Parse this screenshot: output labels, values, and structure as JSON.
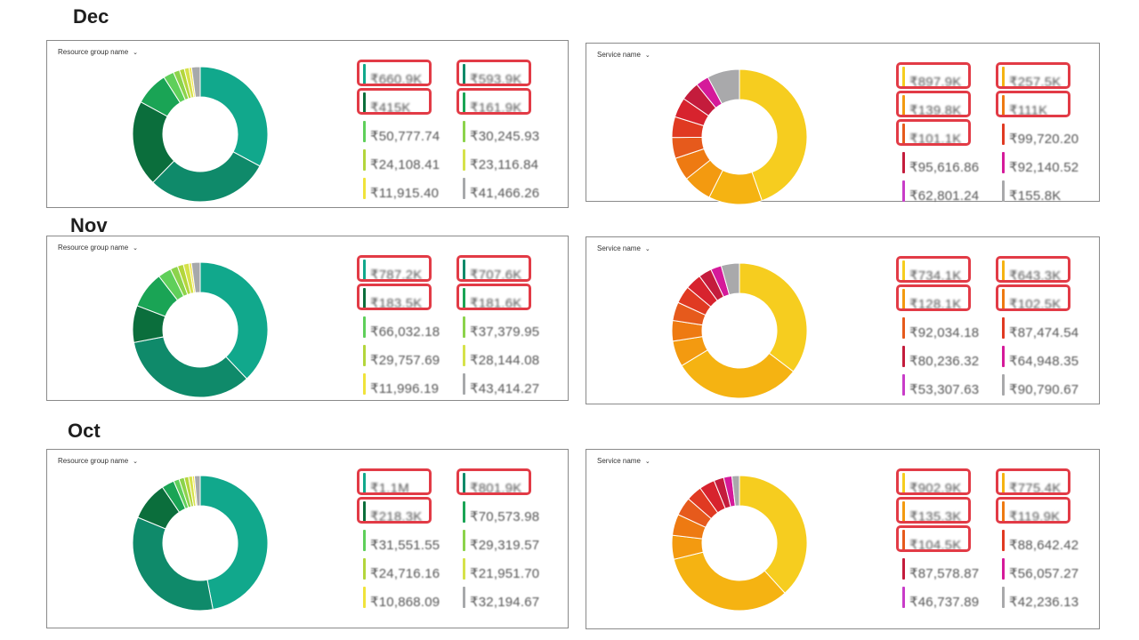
{
  "months": [
    {
      "label": "Dec",
      "left": {
        "dropdown_label": "Resource group name",
        "chart_data": {
          "type": "pie",
          "values": [
            660.9,
            593.9,
            415,
            161.9,
            50.78,
            30.25,
            24.11,
            23.12,
            11.92,
            41.47
          ],
          "colors": [
            "#11a88c",
            "#0f8a6a",
            "#0b6e3c",
            "#1aa455",
            "#5fcf5a",
            "#8cd34b",
            "#b4d63c",
            "#d6e24a",
            "#f0e33b",
            "#a7a9ab"
          ]
        },
        "legend": [
          {
            "name": "",
            "value": "₹660.9K",
            "color": "#11a88c",
            "highlighted": true
          },
          {
            "name": "",
            "value": "₹593.9K",
            "color": "#0f8a6a",
            "highlighted": true
          },
          {
            "name": "",
            "value": "₹415K",
            "color": "#0b6e3c",
            "highlighted": true
          },
          {
            "name": "",
            "value": "₹161.9K",
            "color": "#1aa455",
            "highlighted": true
          },
          {
            "name": "",
            "value": "₹50,777.74",
            "color": "#5fcf5a",
            "highlighted": false
          },
          {
            "name": "",
            "value": "₹30,245.93",
            "color": "#8cd34b",
            "highlighted": false
          },
          {
            "name": "",
            "value": "₹24,108.41",
            "color": "#b4d63c",
            "highlighted": false
          },
          {
            "name": "",
            "value": "₹23,116.84",
            "color": "#d6e24a",
            "highlighted": false
          },
          {
            "name": "",
            "value": "₹11,915.40",
            "color": "#f0e33b",
            "highlighted": false
          },
          {
            "name": "",
            "value": "₹41,466.26",
            "color": "#a7a9ab",
            "highlighted": false
          }
        ]
      },
      "right": {
        "dropdown_label": "Service name",
        "chart_data": {
          "type": "pie",
          "values": [
            897.9,
            257.5,
            139.8,
            111,
            101.1,
            99.72,
            95.62,
            92.14,
            62.8,
            155.8
          ],
          "colors": [
            "#f6cd1f",
            "#f5b312",
            "#f39a10",
            "#ee7a12",
            "#e65a1c",
            "#e03a22",
            "#d7232e",
            "#c41c3c",
            "#d51a9a",
            "#a9a9ab"
          ]
        },
        "legend": [
          {
            "name": "",
            "value": "₹897.9K",
            "color": "#f6cd1f",
            "highlighted": true
          },
          {
            "name": "",
            "value": "₹257.5K",
            "color": "#f5b312",
            "highlighted": true
          },
          {
            "name": "",
            "value": "₹139.8K",
            "color": "#f39a10",
            "highlighted": true
          },
          {
            "name": "",
            "value": "₹111K",
            "color": "#ee7a12",
            "highlighted": true
          },
          {
            "name": "",
            "value": "₹101.1K",
            "color": "#e65a1c",
            "highlighted": true
          },
          {
            "name": "",
            "value": "₹99,720.20",
            "color": "#e03a22",
            "highlighted": false
          },
          {
            "name": "",
            "value": "₹95,616.86",
            "color": "#c41c3c",
            "highlighted": false
          },
          {
            "name": "",
            "value": "₹92,140.52",
            "color": "#d51a9a",
            "highlighted": false
          },
          {
            "name": "",
            "value": "₹62,801.24",
            "color": "#c83cc8",
            "highlighted": false
          },
          {
            "name": "",
            "value": "₹155.8K",
            "color": "#a9a9ab",
            "highlighted": false
          }
        ]
      }
    },
    {
      "label": "Nov",
      "left": {
        "dropdown_label": "Resource group name",
        "chart_data": {
          "type": "pie",
          "values": [
            787.2,
            707.6,
            183.5,
            181.6,
            66.03,
            37.38,
            29.76,
            28.14,
            12.0,
            43.41
          ],
          "colors": [
            "#11a88c",
            "#0f8a6a",
            "#0b6e3c",
            "#1aa455",
            "#5fcf5a",
            "#8cd34b",
            "#b4d63c",
            "#d6e24a",
            "#f0e33b",
            "#a7a9ab"
          ]
        },
        "legend": [
          {
            "name": "",
            "value": "₹787.2K",
            "color": "#11a88c",
            "highlighted": true
          },
          {
            "name": "",
            "value": "₹707.6K",
            "color": "#0f8a6a",
            "highlighted": true
          },
          {
            "name": "",
            "value": "₹183.5K",
            "color": "#0b6e3c",
            "highlighted": true
          },
          {
            "name": "",
            "value": "₹181.6K",
            "color": "#1aa455",
            "highlighted": true
          },
          {
            "name": "",
            "value": "₹66,032.18",
            "color": "#5fcf5a",
            "highlighted": false
          },
          {
            "name": "",
            "value": "₹37,379.95",
            "color": "#8cd34b",
            "highlighted": false
          },
          {
            "name": "",
            "value": "₹29,757.69",
            "color": "#b4d63c",
            "highlighted": false
          },
          {
            "name": "",
            "value": "₹28,144.08",
            "color": "#d6e24a",
            "highlighted": false
          },
          {
            "name": "",
            "value": "₹11,996.19",
            "color": "#f0e33b",
            "highlighted": false
          },
          {
            "name": "",
            "value": "₹43,414.27",
            "color": "#a7a9ab",
            "highlighted": false
          }
        ]
      },
      "right": {
        "dropdown_label": "Service name",
        "chart_data": {
          "type": "pie",
          "values": [
            734.1,
            643.3,
            128.1,
            102.5,
            92.03,
            87.47,
            80.24,
            64.95,
            53.31,
            90.79
          ],
          "colors": [
            "#f6cd1f",
            "#f5b312",
            "#f39a10",
            "#ee7a12",
            "#e65a1c",
            "#e03a22",
            "#d7232e",
            "#c41c3c",
            "#d51a9a",
            "#a9a9ab"
          ]
        },
        "legend": [
          {
            "name": "",
            "value": "₹734.1K",
            "color": "#f6cd1f",
            "highlighted": true
          },
          {
            "name": "",
            "value": "₹643.3K",
            "color": "#f5b312",
            "highlighted": true
          },
          {
            "name": "",
            "value": "₹128.1K",
            "color": "#f39a10",
            "highlighted": true
          },
          {
            "name": "",
            "value": "₹102.5K",
            "color": "#ee7a12",
            "highlighted": true
          },
          {
            "name": "",
            "value": "₹92,034.18",
            "color": "#e65a1c",
            "highlighted": false
          },
          {
            "name": "",
            "value": "₹87,474.54",
            "color": "#e03a22",
            "highlighted": false
          },
          {
            "name": "",
            "value": "₹80,236.32",
            "color": "#c41c3c",
            "highlighted": false
          },
          {
            "name": "",
            "value": "₹64,948.35",
            "color": "#d51a9a",
            "highlighted": false
          },
          {
            "name": "",
            "value": "₹53,307.63",
            "color": "#c83cc8",
            "highlighted": false
          },
          {
            "name": "",
            "value": "₹90,790.67",
            "color": "#a9a9ab",
            "highlighted": false
          }
        ]
      }
    },
    {
      "label": "Oct",
      "left": {
        "dropdown_label": "Resource group name",
        "chart_data": {
          "type": "pie",
          "values": [
            1100,
            801.9,
            218.3,
            70.57,
            31.55,
            29.32,
            24.72,
            21.95,
            10.87,
            32.19
          ],
          "colors": [
            "#11a88c",
            "#0f8a6a",
            "#0b6e3c",
            "#1aa455",
            "#5fcf5a",
            "#8cd34b",
            "#b4d63c",
            "#d6e24a",
            "#f0e33b",
            "#a7a9ab"
          ]
        },
        "legend": [
          {
            "name": "",
            "value": "₹1.1M",
            "color": "#11a88c",
            "highlighted": true
          },
          {
            "name": "",
            "value": "₹801.9K",
            "color": "#0f8a6a",
            "highlighted": true
          },
          {
            "name": "",
            "value": "₹218.3K",
            "color": "#0b6e3c",
            "highlighted": true
          },
          {
            "name": "",
            "value": "₹70,573.98",
            "color": "#1aa455",
            "highlighted": false
          },
          {
            "name": "",
            "value": "₹31,551.55",
            "color": "#5fcf5a",
            "highlighted": false
          },
          {
            "name": "",
            "value": "₹29,319.57",
            "color": "#8cd34b",
            "highlighted": false
          },
          {
            "name": "",
            "value": "₹24,716.16",
            "color": "#b4d63c",
            "highlighted": false
          },
          {
            "name": "",
            "value": "₹21,951.70",
            "color": "#d6e24a",
            "highlighted": false
          },
          {
            "name": "",
            "value": "₹10,868.09",
            "color": "#f0e33b",
            "highlighted": false
          },
          {
            "name": "",
            "value": "₹32,194.67",
            "color": "#a7a9ab",
            "highlighted": false
          }
        ]
      },
      "right": {
        "dropdown_label": "Service name",
        "chart_data": {
          "type": "pie",
          "values": [
            902.9,
            775.4,
            135.3,
            119.9,
            104.5,
            88.64,
            87.58,
            56.06,
            46.74,
            42.24
          ],
          "colors": [
            "#f6cd1f",
            "#f5b312",
            "#f39a10",
            "#ee7a12",
            "#e65a1c",
            "#e03a22",
            "#d7232e",
            "#c41c3c",
            "#d51a9a",
            "#a9a9ab"
          ]
        },
        "legend": [
          {
            "name": "",
            "value": "₹902.9K",
            "color": "#f6cd1f",
            "highlighted": true
          },
          {
            "name": "",
            "value": "₹775.4K",
            "color": "#f5b312",
            "highlighted": true
          },
          {
            "name": "",
            "value": "₹135.3K",
            "color": "#f39a10",
            "highlighted": true
          },
          {
            "name": "",
            "value": "₹119.9K",
            "color": "#ee7a12",
            "highlighted": true
          },
          {
            "name": "",
            "value": "₹104.5K",
            "color": "#e65a1c",
            "highlighted": true
          },
          {
            "name": "",
            "value": "₹88,642.42",
            "color": "#e03a22",
            "highlighted": false
          },
          {
            "name": "",
            "value": "₹87,578.87",
            "color": "#c41c3c",
            "highlighted": false
          },
          {
            "name": "",
            "value": "₹56,057.27",
            "color": "#d51a9a",
            "highlighted": false
          },
          {
            "name": "",
            "value": "₹46,737.89",
            "color": "#c83cc8",
            "highlighted": false
          },
          {
            "name": "",
            "value": "₹42,236.13",
            "color": "#a9a9ab",
            "highlighted": false
          }
        ]
      }
    }
  ]
}
